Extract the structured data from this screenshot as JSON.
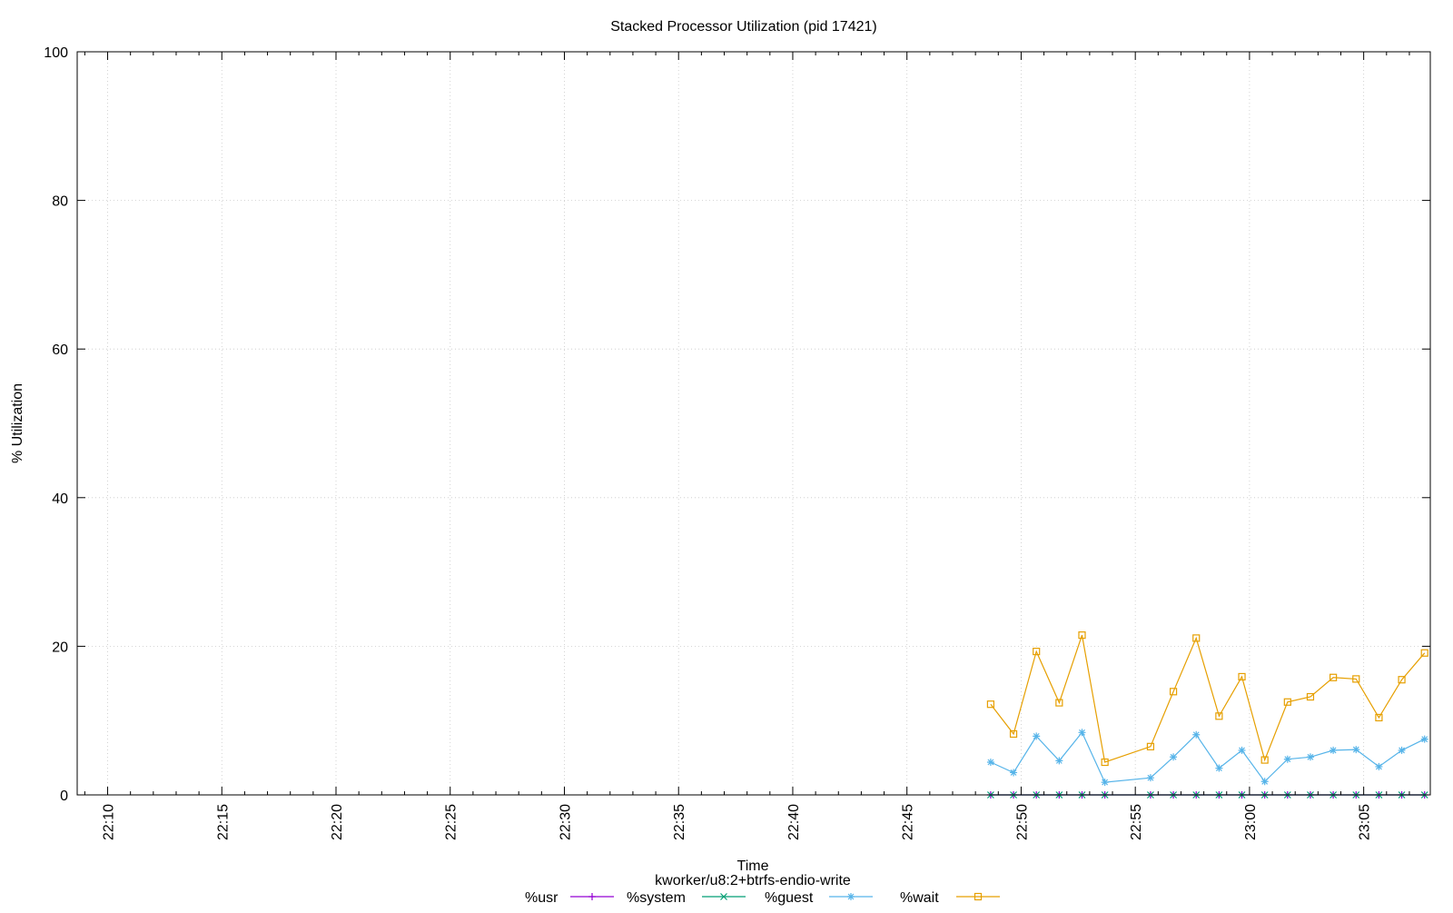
{
  "chart_data": {
    "type": "line",
    "title": "Stacked Processor Utilization (pid 17421)",
    "xlabel": "Time",
    "ylabel": "% Utilization",
    "subtitle": "kworker/u8:2+btrfs-endio-write",
    "ylim": [
      0,
      100
    ],
    "yticks": [
      0,
      20,
      40,
      60,
      80,
      100
    ],
    "xlim": [
      "22:08:40",
      "23:07:55"
    ],
    "xticks": [
      "22:10",
      "22:15",
      "22:20",
      "22:25",
      "22:30",
      "22:35",
      "22:40",
      "22:45",
      "22:50",
      "22:55",
      "23:00",
      "23:05"
    ],
    "grid": true,
    "legend_position": "bottom",
    "x": [
      "22:48:40",
      "22:49:40",
      "22:50:40",
      "22:51:40",
      "22:52:40",
      "22:53:40",
      "22:55:40",
      "22:56:40",
      "22:57:40",
      "22:58:40",
      "22:59:40",
      "23:00:40",
      "23:01:40",
      "23:02:40",
      "23:03:40",
      "23:04:40",
      "23:05:40",
      "23:06:40",
      "23:07:40"
    ],
    "series": [
      {
        "name": "%usr",
        "color": "#9400d3",
        "marker": "plus",
        "values": [
          0,
          0,
          0,
          0,
          0,
          0,
          0,
          0,
          0,
          0,
          0,
          0,
          0,
          0,
          0,
          0,
          0,
          0,
          0
        ]
      },
      {
        "name": "%system",
        "color": "#009e73",
        "marker": "cross",
        "values": [
          0,
          0,
          0,
          0,
          0,
          0,
          0,
          0,
          0,
          0,
          0,
          0,
          0,
          0,
          0,
          0,
          0,
          0,
          0
        ]
      },
      {
        "name": "%guest",
        "color": "#56b4e9",
        "marker": "star",
        "values": [
          4.4,
          3.0,
          7.9,
          4.6,
          8.4,
          1.7,
          2.3,
          5.1,
          8.1,
          3.6,
          6.0,
          1.8,
          4.8,
          5.1,
          6.0,
          6.1,
          3.8,
          6.0,
          7.5
        ]
      },
      {
        "name": "%wait",
        "color": "#e69f00",
        "marker": "square",
        "values": [
          7.8,
          5.2,
          11.4,
          7.8,
          13.1,
          2.7,
          4.2,
          8.8,
          13.0,
          7.0,
          9.9,
          2.9,
          7.7,
          8.1,
          9.8,
          9.5,
          6.6,
          9.5,
          11.6
        ]
      }
    ]
  }
}
